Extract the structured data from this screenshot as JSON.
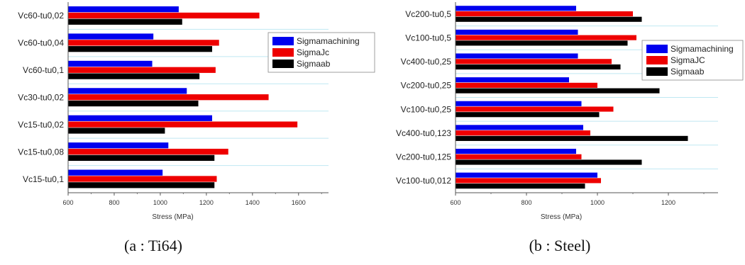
{
  "colors": {
    "Sigmamachining": "#0000ee",
    "SigmaJc": "#ee0000",
    "Sigmaab": "#000000"
  },
  "chart_data": [
    {
      "type": "bar",
      "orientation": "horizontal",
      "caption": "(a : Ti64)",
      "xlabel": "Stress (MPa)",
      "xlim": [
        600,
        1730
      ],
      "xticks": [
        600,
        800,
        1000,
        1200,
        1400,
        1600
      ],
      "grid": true,
      "legend_position": "right",
      "categories": [
        "Vc60-tu0,02",
        "Vc60-tu0,04",
        "Vc60-tu0,1",
        "Vc30-tu0,02",
        "Vc15-tu0,02",
        "Vc15-tu0,08",
        "Vc15-tu0,1"
      ],
      "series": [
        {
          "name": "Sigmamachining",
          "values": [
            1080,
            970,
            965,
            1115,
            1225,
            1035,
            1010
          ]
        },
        {
          "name": "SigmaJc",
          "values": [
            1430,
            1255,
            1240,
            1470,
            1595,
            1295,
            1245
          ]
        },
        {
          "name": "Sigmaab",
          "values": [
            1095,
            1225,
            1170,
            1165,
            1020,
            1235,
            1235
          ]
        }
      ]
    },
    {
      "type": "bar",
      "orientation": "horizontal",
      "caption": "(b : Steel)",
      "xlabel": "Stress (MPa)",
      "xlim": [
        600,
        1340
      ],
      "xticks": [
        600,
        800,
        1000,
        1200
      ],
      "grid": true,
      "legend_position": "right",
      "categories": [
        "Vc200-tu0,5",
        "Vc100-tu0,5",
        "Vc400-tu0,25",
        "Vc200-tu0,25",
        "Vc100-tu0,25",
        "Vc400-tu0,123",
        "Vc200-tu0,125",
        "Vc100-tu0,012"
      ],
      "series": [
        {
          "name": "Sigmamachining",
          "values": [
            940,
            945,
            945,
            920,
            955,
            960,
            940,
            1000
          ]
        },
        {
          "name": "SigmaJC",
          "values": [
            1100,
            1110,
            1040,
            1000,
            1045,
            980,
            955,
            1010
          ]
        },
        {
          "name": "Sigmaab",
          "values": [
            1125,
            1085,
            1065,
            1175,
            1005,
            1255,
            1125,
            965
          ]
        }
      ]
    }
  ]
}
